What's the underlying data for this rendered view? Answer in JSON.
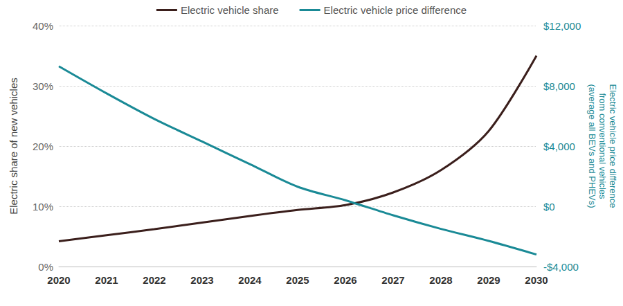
{
  "chart_data": {
    "type": "line",
    "categories": [
      "2020",
      "2021",
      "2022",
      "2023",
      "2024",
      "2025",
      "2026",
      "2027",
      "2028",
      "2029",
      "2030"
    ],
    "series": [
      {
        "name": "Electric vehicle share",
        "color": "#3b1f1c",
        "axis": "y",
        "values": [
          4.2,
          5.2,
          6.2,
          7.3,
          8.4,
          9.4,
          10.2,
          12.3,
          16,
          22.5,
          35
        ]
      },
      {
        "name": "Electric vehicle price difference",
        "color": "#1a8a96",
        "axis": "y2",
        "values": [
          9300,
          7500,
          5800,
          4300,
          2800,
          1300,
          400,
          -600,
          -1500,
          -2300,
          -3200
        ]
      }
    ],
    "ylabel": "Electric share of new vehicles",
    "y2label": "Electric vehicle price difference\nfrom conventional vehicles\n(average all BEVs and PHEVs)",
    "ylim": [
      0,
      40
    ],
    "yticks": [
      {
        "value": 0,
        "label": "0%"
      },
      {
        "value": 10,
        "label": "10%"
      },
      {
        "value": 20,
        "label": "20%"
      },
      {
        "value": 30,
        "label": "30%"
      },
      {
        "value": 40,
        "label": "40%"
      }
    ],
    "y2lim": [
      -4000,
      12000
    ],
    "y2ticks": [
      {
        "value": -4000,
        "label": "-$4,000"
      },
      {
        "value": 0,
        "label": "$0"
      },
      {
        "value": 4000,
        "label": "$4,000"
      },
      {
        "value": 8000,
        "label": "$8,000"
      },
      {
        "value": 12000,
        "label": "$12,000"
      }
    ],
    "grid": true,
    "legend": "top"
  }
}
